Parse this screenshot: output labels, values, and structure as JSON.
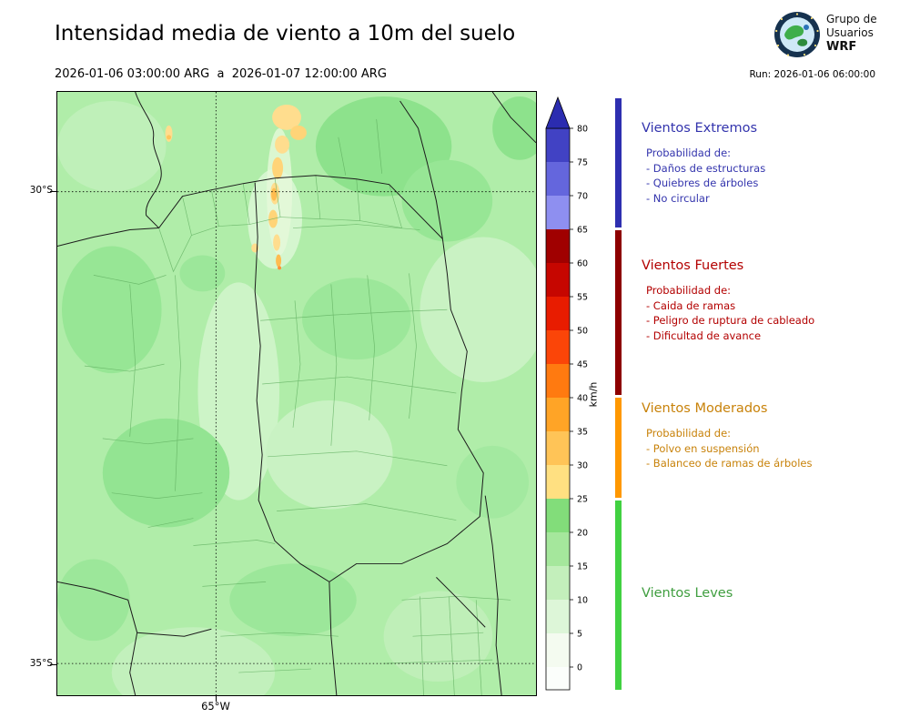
{
  "header": {
    "title": "Intensidad media de viento a 10m del suelo",
    "date_range": "2026-01-06 03:00:00 ARG  a  2026-01-07 12:00:00 ARG",
    "run": "Run: 2026-01-06 06:00:00"
  },
  "logo": {
    "line1": "Grupo de",
    "line2": "Usuarios",
    "line3": "WRF"
  },
  "map": {
    "lat_labels": [
      "30°S",
      "35°S"
    ],
    "lon_labels": [
      "65°W"
    ]
  },
  "colorbar": {
    "unit": "km/h",
    "ticks": [
      0,
      5,
      10,
      15,
      20,
      25,
      30,
      35,
      40,
      45,
      50,
      55,
      60,
      65,
      70,
      75,
      80
    ],
    "segment_colors": [
      "#f4fbf0",
      "#ddf6d8",
      "#c3efbb",
      "#a5e79c",
      "#82dd7a",
      "#ffe081",
      "#ffc457",
      "#ffa426",
      "#ff7a10",
      "#fb4508",
      "#e81c00",
      "#c60600",
      "#a00000",
      "#8e8ff0",
      "#6466dd",
      "#4142c4"
    ],
    "over_color": "#2b2cb0",
    "under_color": "#fbfefb"
  },
  "category_bar": {
    "colors": [
      "#2e2fb0",
      "#8d0000",
      "#ff9800",
      "#41d141"
    ]
  },
  "categories": [
    {
      "name": "Vientos Extremos",
      "color": "#3334ad",
      "prob_title": "Probabilidad de:",
      "items": [
        "- Daños de estructuras",
        "- Quiebres de árboles",
        "- No circular"
      ]
    },
    {
      "name": "Vientos Fuertes",
      "color": "#b30000",
      "prob_title": "Probabilidad de:",
      "items": [
        "- Caida de ramas",
        "- Peligro de ruptura de cableado",
        "- Dificultad de avance"
      ]
    },
    {
      "name": "Vientos Moderados",
      "color": "#c8820a",
      "prob_title": "Probabilidad de:",
      "items": [
        "- Polvo en suspensión",
        "- Balanceo de ramas de árboles"
      ]
    },
    {
      "name": "Vientos Leves",
      "color": "#3f9e3f",
      "prob_title": "",
      "items": []
    }
  ]
}
